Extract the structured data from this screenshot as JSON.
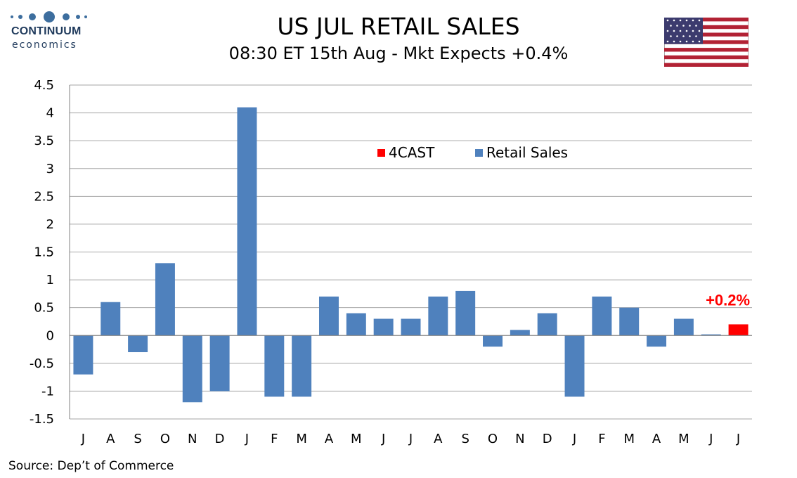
{
  "header": {
    "logo_name": "CONTINUUM",
    "logo_sub": "economics",
    "title": "US JUL RETAIL SALES",
    "subtitle": "08:30 ET 15th Aug - Mkt Expects +0.4%"
  },
  "footer": {
    "source": "Source: Dep’t of Commerce"
  },
  "colors": {
    "retail_sales": "#4f81bd",
    "forecast": "#ff0000",
    "grid": "#a6a6a6"
  },
  "chart_data": {
    "type": "bar",
    "categories": [
      "J",
      "A",
      "S",
      "O",
      "N",
      "D",
      "J",
      "F",
      "M",
      "A",
      "M",
      "J",
      "J",
      "A",
      "S",
      "O",
      "N",
      "D",
      "J",
      "F",
      "M",
      "A",
      "M",
      "J",
      "J"
    ],
    "series": [
      {
        "name": "Retail Sales",
        "values": [
          -0.7,
          0.6,
          -0.3,
          1.3,
          -1.2,
          -1.0,
          4.1,
          -1.1,
          -1.1,
          0.7,
          0.4,
          0.3,
          0.3,
          0.7,
          0.8,
          -0.2,
          0.1,
          0.4,
          -1.1,
          0.7,
          0.5,
          -0.2,
          0.3,
          0.02,
          null
        ]
      },
      {
        "name": "4CAST",
        "values": [
          null,
          null,
          null,
          null,
          null,
          null,
          null,
          null,
          null,
          null,
          null,
          null,
          null,
          null,
          null,
          null,
          null,
          null,
          null,
          null,
          null,
          null,
          null,
          null,
          0.2
        ]
      }
    ],
    "annotation": "+0.2%",
    "ylim": [
      -1.5,
      4.5
    ],
    "yticks": [
      -1.5,
      -1,
      -0.5,
      0,
      0.5,
      1,
      1.5,
      2,
      2.5,
      3,
      3.5,
      4,
      4.5
    ],
    "legend": [
      "4CAST",
      "Retail Sales"
    ],
    "legend_position": "top-center",
    "grid": true,
    "xlabel": "",
    "ylabel": ""
  }
}
